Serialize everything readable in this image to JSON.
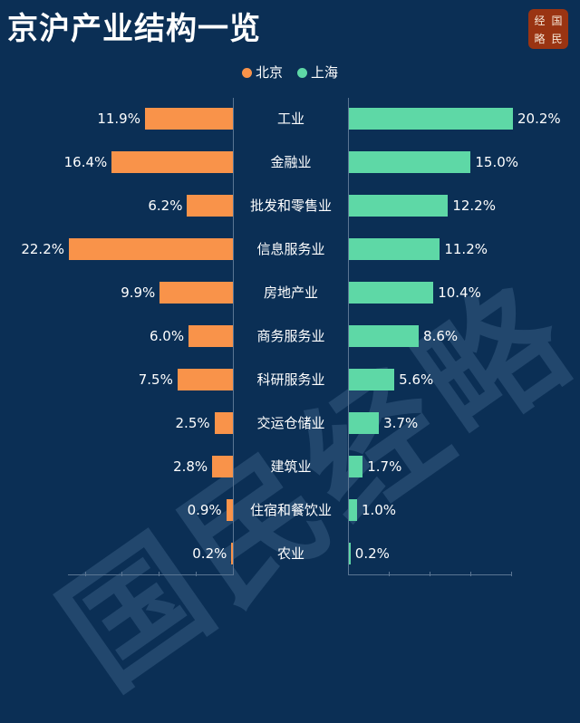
{
  "header": {
    "title": "京沪产业结构一览",
    "logo": [
      "经",
      "国",
      "略",
      "民"
    ]
  },
  "legend": [
    {
      "label": "北京",
      "color": "#f9934a"
    },
    {
      "label": "上海",
      "color": "#5ed8a6"
    }
  ],
  "watermark": "国民经略",
  "colors": {
    "background": "#0b2f55",
    "beijing": "#f9934a",
    "shanghai": "#5ed8a6",
    "axis": "#5a7593"
  },
  "chart_data": {
    "type": "bar",
    "orientation": "horizontal-butterfly",
    "title": "京沪产业结构一览",
    "categories": [
      "工业",
      "金融业",
      "批发和零售业",
      "信息服务业",
      "房地产业",
      "商务服务业",
      "科研服务业",
      "交运仓储业",
      "建筑业",
      "住宿和餐饮业",
      "农业"
    ],
    "series": [
      {
        "name": "北京",
        "side": "left",
        "color": "#f9934a",
        "values": [
          11.9,
          16.4,
          6.2,
          22.2,
          9.9,
          6.0,
          7.5,
          2.5,
          2.8,
          0.9,
          0.2
        ],
        "labels": [
          "11.9%",
          "16.4%",
          "6.2%",
          "22.2%",
          "9.9%",
          "6.0%",
          "7.5%",
          "2.5%",
          "2.8%",
          "0.9%",
          "0.2%"
        ]
      },
      {
        "name": "上海",
        "side": "right",
        "color": "#5ed8a6",
        "values": [
          20.2,
          15.0,
          12.2,
          11.2,
          10.4,
          8.6,
          5.6,
          3.7,
          1.7,
          1.0,
          0.2
        ],
        "labels": [
          "20.2%",
          "15.0%",
          "12.2%",
          "11.2%",
          "10.4%",
          "8.6%",
          "5.6%",
          "3.7%",
          "1.7%",
          "1.0%",
          "0.2%"
        ]
      }
    ],
    "xlabel": "",
    "ylabel": "",
    "unit": "%",
    "legend_position": "top-center",
    "grid": false
  }
}
